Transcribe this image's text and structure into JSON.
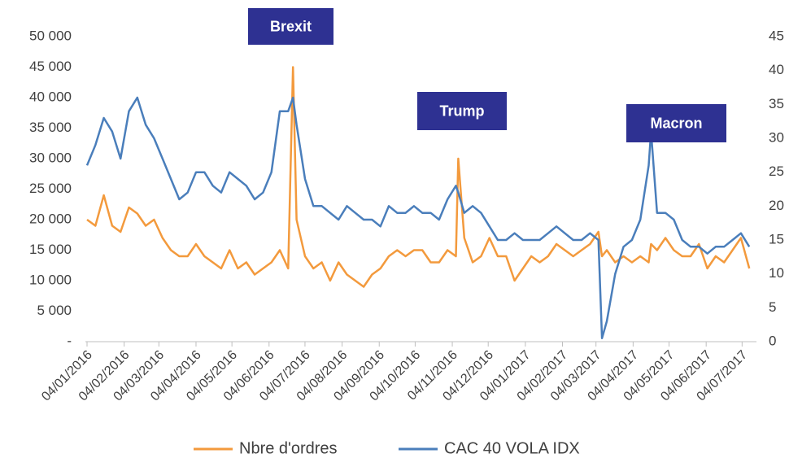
{
  "chart_data": {
    "type": "line",
    "annotations": [
      "Brexit",
      "Trump",
      "Macron"
    ],
    "x": [
      "04/01/2016",
      "11/01/2016",
      "18/01/2016",
      "25/01/2016",
      "01/02/2016",
      "08/02/2016",
      "15/02/2016",
      "22/02/2016",
      "29/02/2016",
      "07/03/2016",
      "14/03/2016",
      "21/03/2016",
      "28/03/2016",
      "04/04/2016",
      "11/04/2016",
      "18/04/2016",
      "25/04/2016",
      "02/05/2016",
      "09/05/2016",
      "16/05/2016",
      "23/05/2016",
      "30/05/2016",
      "06/06/2016",
      "13/06/2016",
      "20/06/2016",
      "24/06/2016",
      "27/06/2016",
      "04/07/2016",
      "11/07/2016",
      "18/07/2016",
      "25/07/2016",
      "01/08/2016",
      "08/08/2016",
      "15/08/2016",
      "22/08/2016",
      "29/08/2016",
      "05/09/2016",
      "12/09/2016",
      "19/09/2016",
      "26/09/2016",
      "03/10/2016",
      "10/10/2016",
      "17/10/2016",
      "24/10/2016",
      "31/10/2016",
      "07/11/2016",
      "09/11/2016",
      "14/11/2016",
      "21/11/2016",
      "28/11/2016",
      "05/12/2016",
      "12/12/2016",
      "19/12/2016",
      "26/12/2016",
      "02/01/2017",
      "09/01/2017",
      "16/01/2017",
      "23/01/2017",
      "30/01/2017",
      "06/02/2017",
      "13/02/2017",
      "20/02/2017",
      "27/02/2017",
      "06/03/2017",
      "09/03/2017",
      "13/03/2017",
      "20/03/2017",
      "27/03/2017",
      "03/04/2017",
      "10/04/2017",
      "17/04/2017",
      "19/04/2017",
      "24/04/2017",
      "01/05/2017",
      "08/05/2017",
      "15/05/2017",
      "22/05/2017",
      "29/05/2017",
      "05/06/2017",
      "12/06/2017",
      "19/06/2017",
      "26/06/2017",
      "03/07/2017",
      "10/07/2017"
    ],
    "series": [
      {
        "name": "Nbre d'ordres",
        "color": "#f39a3d",
        "axis": "y",
        "values": [
          20000,
          19000,
          24000,
          19000,
          18000,
          22000,
          21000,
          19000,
          20000,
          17000,
          15000,
          14000,
          14000,
          16000,
          14000,
          13000,
          12000,
          15000,
          12000,
          13000,
          11000,
          12000,
          13000,
          15000,
          12000,
          45000,
          20000,
          14000,
          12000,
          13000,
          10000,
          13000,
          11000,
          10000,
          9000,
          11000,
          12000,
          14000,
          15000,
          14000,
          15000,
          15000,
          13000,
          13000,
          15000,
          14000,
          30000,
          17000,
          13000,
          14000,
          17000,
          14000,
          14000,
          10000,
          12000,
          14000,
          13000,
          14000,
          16000,
          15000,
          14000,
          15000,
          16000,
          18000,
          14000,
          15000,
          13000,
          14000,
          13000,
          14000,
          13000,
          16000,
          15000,
          17000,
          15000,
          14000,
          14000,
          16000,
          12000,
          14000,
          13000,
          15000,
          17000,
          12000
        ]
      },
      {
        "name": "CAC 40 VOLA IDX",
        "color": "#4a7ebb",
        "axis": "y2",
        "values": [
          26,
          29,
          33,
          31,
          27,
          34,
          36,
          32,
          30,
          27,
          24,
          21,
          22,
          25,
          25,
          23,
          22,
          25,
          24,
          23,
          21,
          22,
          25,
          34,
          34,
          36,
          32,
          24,
          20,
          20,
          19,
          18,
          20,
          19,
          18,
          18,
          17,
          20,
          19,
          19,
          20,
          19,
          19,
          18,
          21,
          23,
          22,
          19,
          20,
          19,
          17,
          15,
          15,
          16,
          15,
          15,
          15,
          16,
          17,
          16,
          15,
          15,
          16,
          15,
          0.5,
          3,
          10,
          14,
          15,
          18,
          26,
          31,
          19,
          19,
          18,
          15,
          14,
          14,
          13,
          14,
          14,
          15,
          16,
          14
        ]
      }
    ],
    "xlim": [
      "04/01/2016",
      "16/07/2017"
    ],
    "xticks": [
      "04/01/2016",
      "04/02/2016",
      "04/03/2016",
      "04/04/2016",
      "04/05/2016",
      "04/06/2016",
      "04/07/2016",
      "04/08/2016",
      "04/09/2016",
      "04/10/2016",
      "04/11/2016",
      "04/12/2016",
      "04/01/2017",
      "04/02/2017",
      "04/03/2017",
      "04/04/2017",
      "04/05/2017",
      "04/06/2017",
      "04/07/2017"
    ],
    "ylim": [
      0,
      50000
    ],
    "yticks": [
      {
        "value": 0,
        "label": "-"
      },
      {
        "value": 5000,
        "label": "5 000"
      },
      {
        "value": 10000,
        "label": "10 000"
      },
      {
        "value": 15000,
        "label": "15 000"
      },
      {
        "value": 20000,
        "label": "20 000"
      },
      {
        "value": 25000,
        "label": "25 000"
      },
      {
        "value": 30000,
        "label": "30 000"
      },
      {
        "value": 35000,
        "label": "35 000"
      },
      {
        "value": 40000,
        "label": "40 000"
      },
      {
        "value": 45000,
        "label": "45 000"
      },
      {
        "value": 50000,
        "label": "50 000"
      }
    ],
    "y2lim": [
      0,
      45
    ],
    "y2ticks": [
      0,
      5,
      10,
      15,
      20,
      25,
      30,
      35,
      40,
      45
    ],
    "legend": "bottom"
  }
}
